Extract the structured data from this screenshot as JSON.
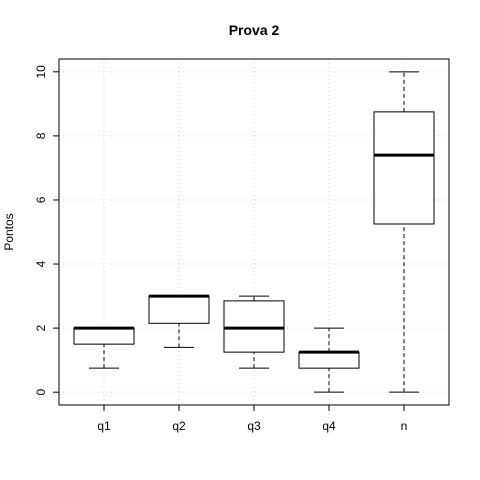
{
  "chart_data": {
    "type": "box",
    "title": "Prova 2",
    "xlabel": "",
    "ylabel": "Pontos",
    "ylim": [
      -0.4,
      10.4
    ],
    "yticks": [
      0,
      2,
      4,
      6,
      8,
      10
    ],
    "ytick_labels": [
      "0",
      "2",
      "4",
      "6",
      "8",
      "10"
    ],
    "grid": true,
    "categories": [
      "q1",
      "q2",
      "q3",
      "q4",
      "n"
    ],
    "boxes": [
      {
        "category": "q1",
        "whisker_low": 0.75,
        "q1": 1.5,
        "median": 2.0,
        "q3": 2.0,
        "whisker_high": 2.0
      },
      {
        "category": "q2",
        "whisker_low": 1.4,
        "q1": 2.15,
        "median": 3.0,
        "q3": 3.0,
        "whisker_high": 3.0
      },
      {
        "category": "q3",
        "whisker_low": 0.75,
        "q1": 1.25,
        "median": 2.0,
        "q3": 2.85,
        "whisker_high": 3.0
      },
      {
        "category": "q4",
        "whisker_low": 0.0,
        "q1": 0.75,
        "median": 1.25,
        "q3": 1.25,
        "whisker_high": 2.0
      },
      {
        "category": "n",
        "whisker_low": 0.0,
        "q1": 5.25,
        "median": 7.4,
        "q3": 8.75,
        "whisker_high": 10.0
      }
    ]
  }
}
